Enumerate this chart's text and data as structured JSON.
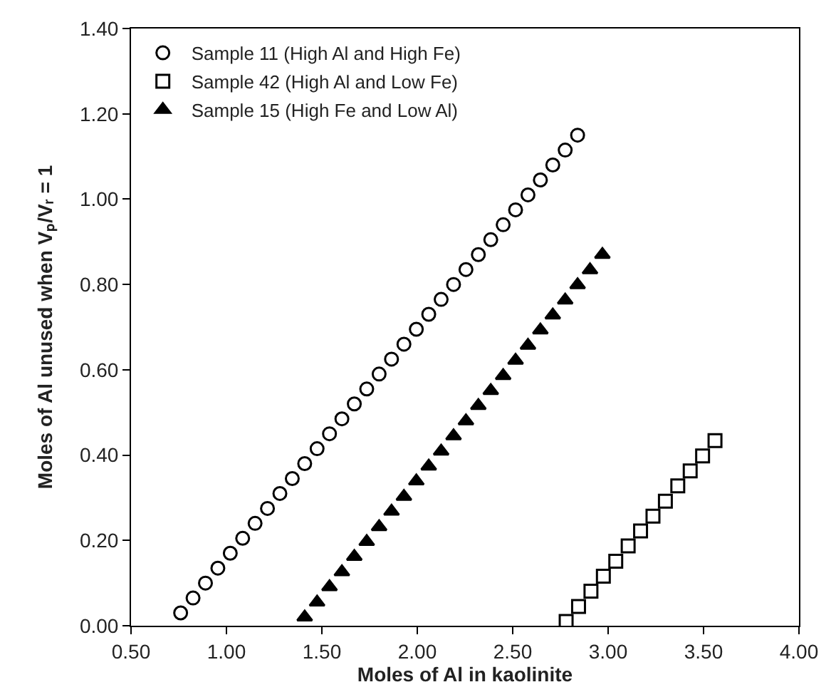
{
  "chart_data": {
    "type": "scatter",
    "xlabel": "Moles of Al in kaolinite",
    "ylabel": "Moles of Al unused when Vₚ/Vᵣ = 1",
    "xlim": [
      0.5,
      4.0
    ],
    "xticks": [
      {
        "value": 0.5,
        "label": "0.50"
      },
      {
        "value": 1.0,
        "label": "1.00"
      },
      {
        "value": 1.5,
        "label": "1.50"
      },
      {
        "value": 2.0,
        "label": "2.00"
      },
      {
        "value": 2.5,
        "label": "2.50"
      },
      {
        "value": 3.0,
        "label": "3.00"
      },
      {
        "value": 3.5,
        "label": "3.50"
      },
      {
        "value": 4.0,
        "label": "4.00"
      }
    ],
    "ylim": [
      0,
      1.4
    ],
    "yticks": [
      {
        "value": 0,
        "label": "0.00"
      },
      {
        "value": 0.2,
        "label": "0.20"
      },
      {
        "value": 0.4,
        "label": "0.40"
      },
      {
        "value": 0.6,
        "label": "0.60"
      },
      {
        "value": 0.8,
        "label": "0.80"
      },
      {
        "value": 1.0,
        "label": "1.00"
      },
      {
        "value": 1.2,
        "label": "1.20"
      },
      {
        "value": 1.4,
        "label": "1.40"
      }
    ],
    "grid": false,
    "legend": "top left",
    "series": [
      {
        "name": "Sample 11 (High Al and High Fe)",
        "color": "#000000",
        "marker": "circle",
        "x": [
          0.76,
          0.825,
          0.89,
          0.955,
          1.02,
          1.085,
          1.15,
          1.215,
          1.28,
          1.345,
          1.41,
          1.475,
          1.54,
          1.605,
          1.67,
          1.735,
          1.8,
          1.865,
          1.93,
          1.995,
          2.06,
          2.125,
          2.19,
          2.255,
          2.32,
          2.385,
          2.45,
          2.515,
          2.58,
          2.645,
          2.71,
          2.775,
          2.84
        ],
        "values": [
          0.03,
          0.065,
          0.1,
          0.135,
          0.17,
          0.205,
          0.24,
          0.275,
          0.31,
          0.345,
          0.38,
          0.415,
          0.45,
          0.485,
          0.52,
          0.555,
          0.59,
          0.625,
          0.66,
          0.695,
          0.73,
          0.765,
          0.8,
          0.835,
          0.87,
          0.905,
          0.94,
          0.975,
          1.01,
          1.045,
          1.08,
          1.115,
          1.15
        ]
      },
      {
        "name": "Sample 42 (High Al and Low Fe)",
        "color": "#000000",
        "marker": "square",
        "x": [
          2.78,
          2.845,
          2.91,
          2.975,
          3.04,
          3.105,
          3.17,
          3.235,
          3.3,
          3.365,
          3.43,
          3.495,
          3.56
        ],
        "values": [
          0.01,
          0.045,
          0.081,
          0.116,
          0.151,
          0.187,
          0.222,
          0.257,
          0.292,
          0.328,
          0.363,
          0.398,
          0.434
        ]
      },
      {
        "name": "Sample 15 (High Fe and Low Al)",
        "color": "#000000",
        "marker": "triangle",
        "x": [
          1.41,
          1.475,
          1.54,
          1.605,
          1.67,
          1.735,
          1.8,
          1.865,
          1.93,
          1.995,
          2.06,
          2.125,
          2.19,
          2.255,
          2.32,
          2.385,
          2.45,
          2.515,
          2.58,
          2.645,
          2.71,
          2.775,
          2.84,
          2.905,
          2.97
        ],
        "values": [
          0.02,
          0.055,
          0.091,
          0.126,
          0.162,
          0.197,
          0.232,
          0.268,
          0.303,
          0.339,
          0.374,
          0.409,
          0.445,
          0.48,
          0.516,
          0.551,
          0.586,
          0.622,
          0.657,
          0.693,
          0.728,
          0.763,
          0.799,
          0.834,
          0.87
        ]
      }
    ]
  }
}
